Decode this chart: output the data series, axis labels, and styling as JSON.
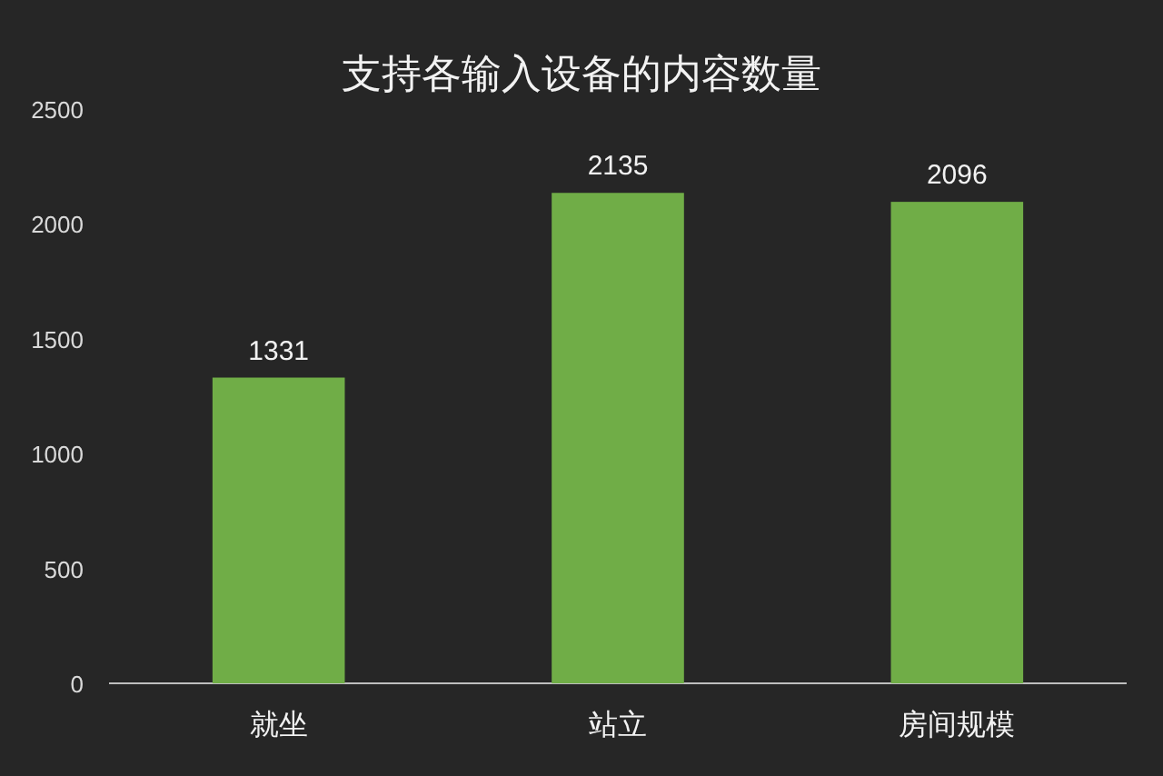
{
  "chart_data": {
    "type": "bar",
    "title": "支持各输入设备的内容数量",
    "categories": [
      "就坐",
      "站立",
      "房间规模"
    ],
    "values": [
      1331,
      2135,
      2096
    ],
    "color": "#70ad47",
    "ylim": [
      0,
      2500
    ],
    "yticks": [
      0,
      500,
      1000,
      1500,
      2000,
      2500
    ],
    "data_labels": true
  }
}
